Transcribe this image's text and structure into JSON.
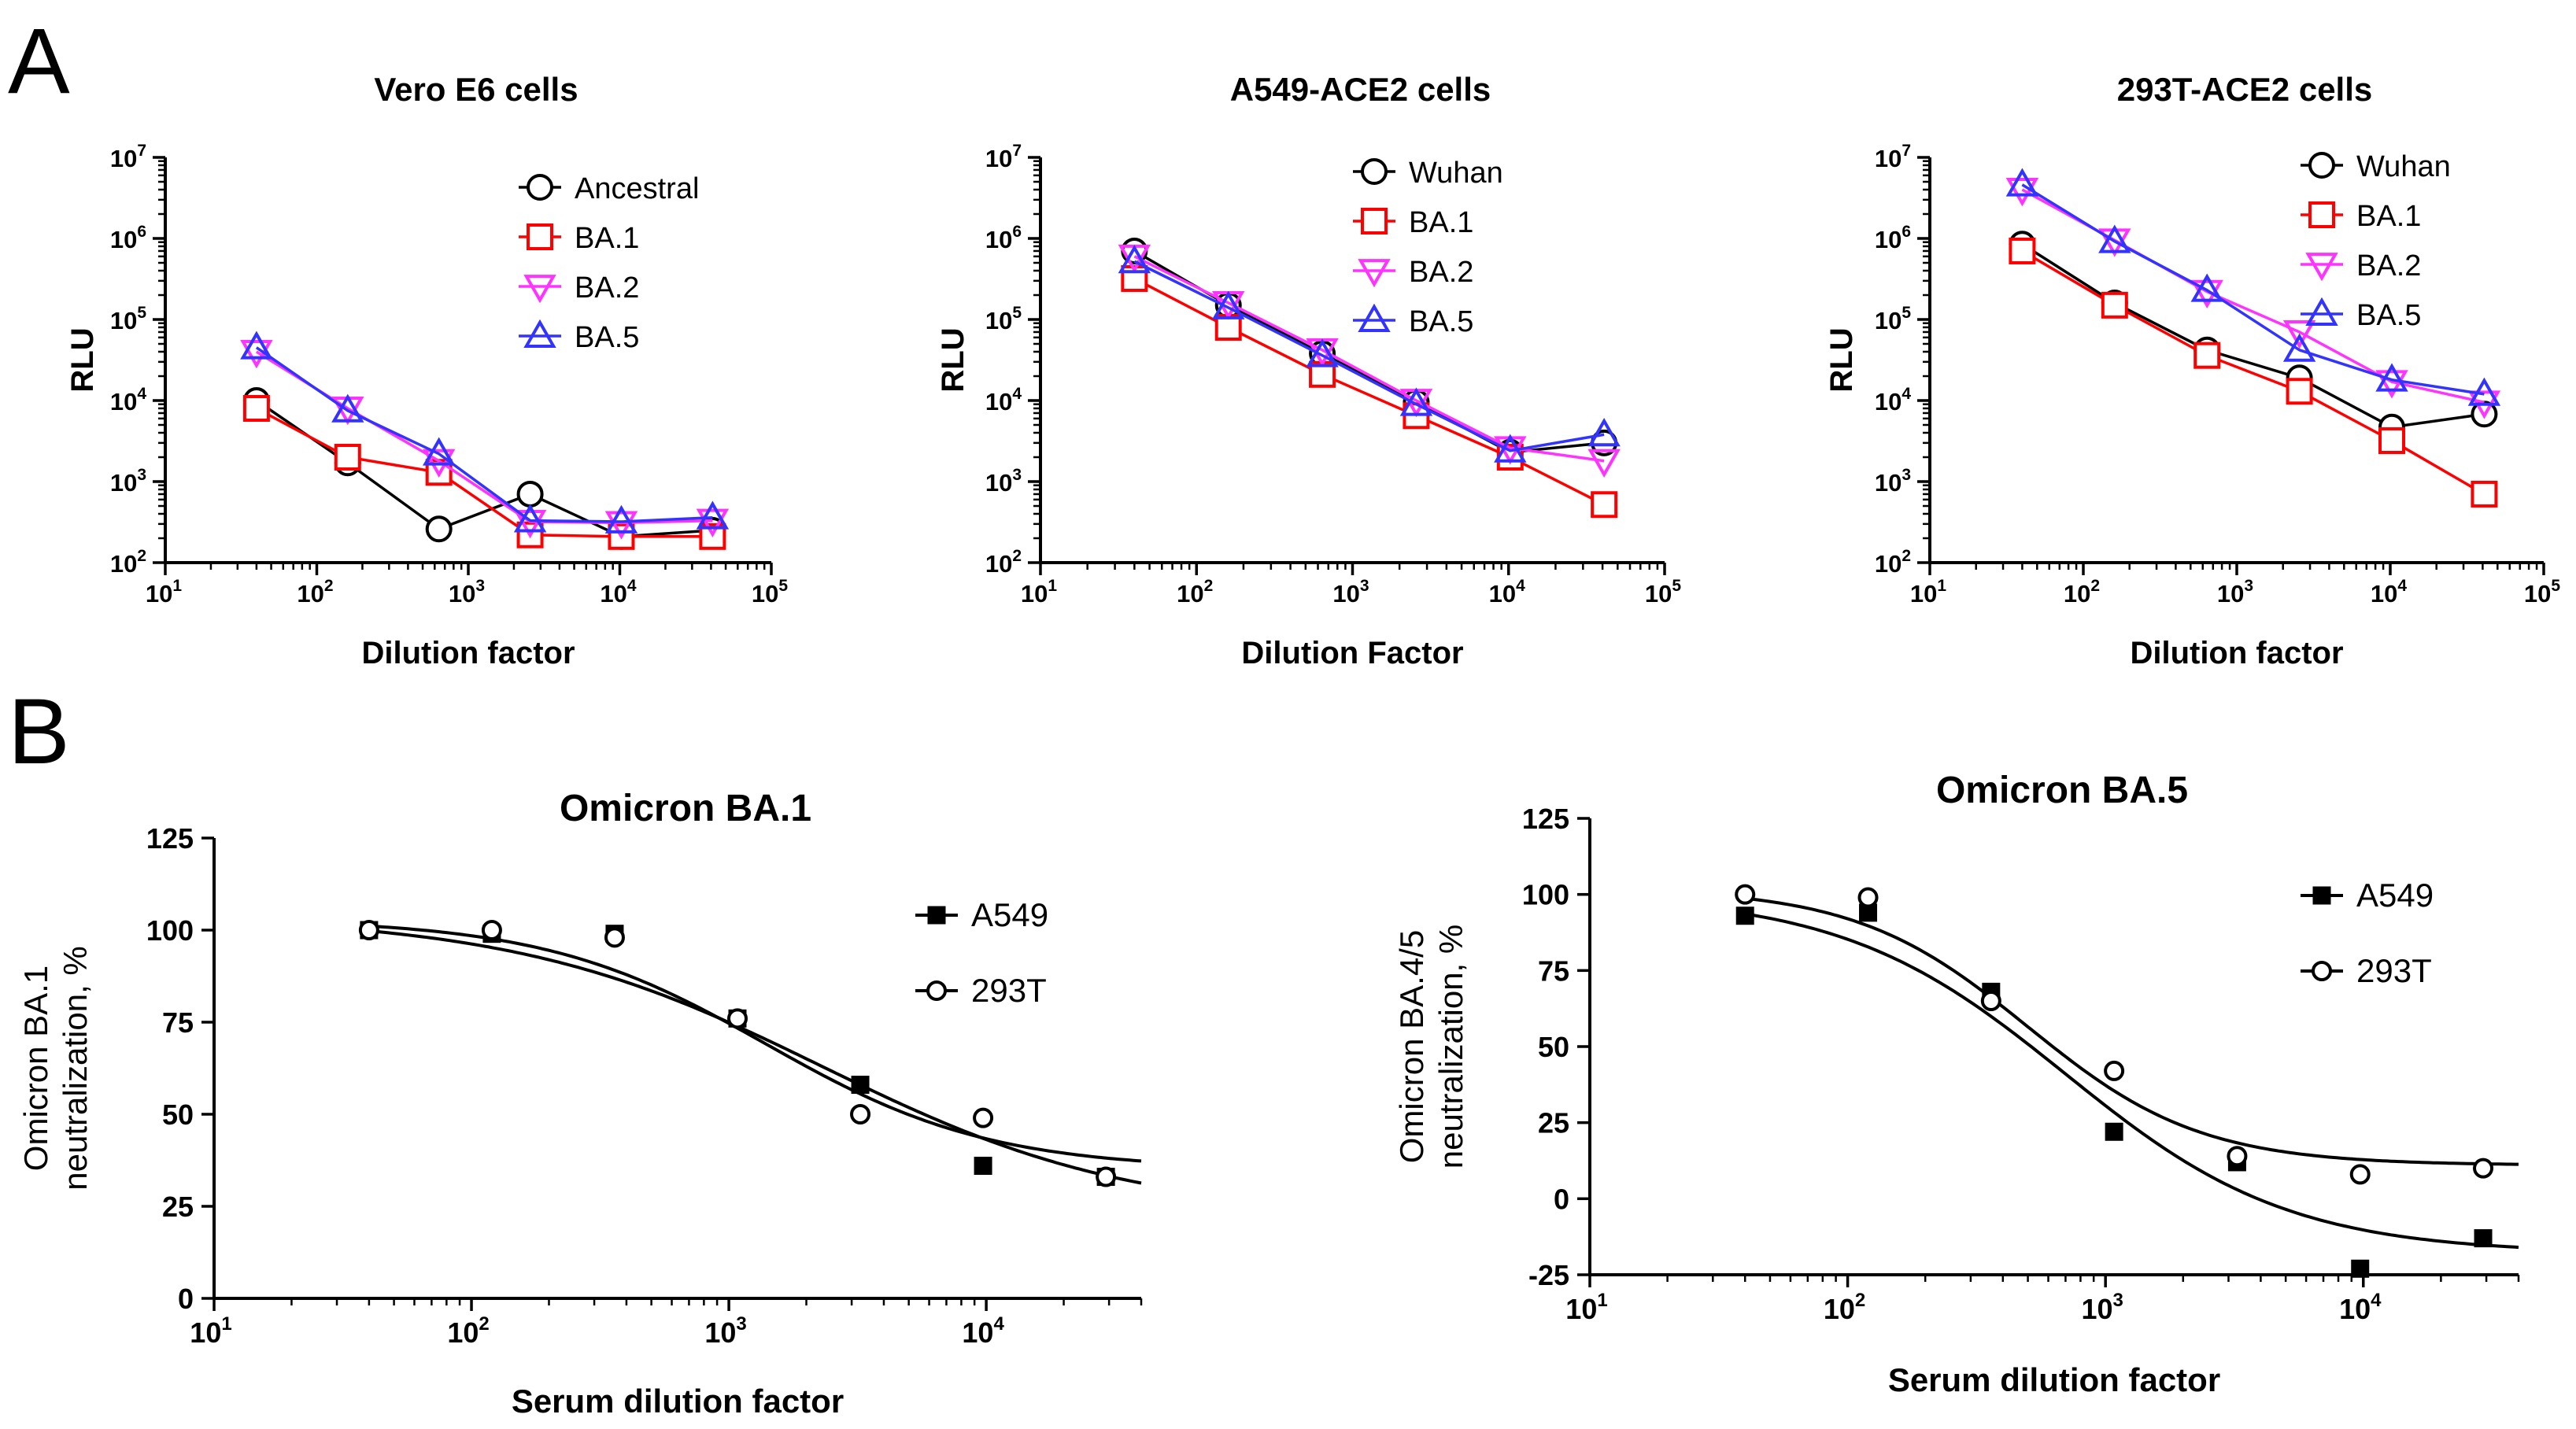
{
  "panel_labels": [
    "A",
    "B"
  ],
  "chart_data": [
    {
      "type": "line",
      "title": "Vero E6 cells",
      "xlabel": "Dilution factor",
      "ylabel": "RLU",
      "xscale": "log",
      "yscale": "log",
      "xlim": [
        10,
        100000
      ],
      "ylim": [
        100,
        10000000
      ],
      "x_ticks": [
        {
          "base": "10",
          "exp": "1"
        },
        {
          "base": "10",
          "exp": "2"
        },
        {
          "base": "10",
          "exp": "3"
        },
        {
          "base": "10",
          "exp": "4"
        },
        {
          "base": "10",
          "exp": "5"
        }
      ],
      "y_ticks": [
        {
          "base": "10",
          "exp": "2"
        },
        {
          "base": "10",
          "exp": "3"
        },
        {
          "base": "10",
          "exp": "4"
        },
        {
          "base": "10",
          "exp": "5"
        },
        {
          "base": "10",
          "exp": "6"
        },
        {
          "base": "10",
          "exp": "7"
        }
      ],
      "x": [
        40,
        160,
        640,
        2560,
        10240,
        40960
      ],
      "legend_position": "top-right",
      "series": [
        {
          "name": "Ancestral",
          "marker": "circle",
          "color": "#000000",
          "values": [
            10000,
            1700,
            260,
            700,
            210,
            250
          ]
        },
        {
          "name": "BA.1",
          "marker": "square",
          "color": "#ff0000",
          "values": [
            8000,
            2000,
            1300,
            220,
            210,
            210
          ]
        },
        {
          "name": "BA.2",
          "marker": "triangle-down",
          "color": "#ff33ff",
          "values": [
            40000,
            8000,
            1800,
            320,
            310,
            330
          ]
        },
        {
          "name": "BA.5",
          "marker": "triangle-up",
          "color": "#3333ff",
          "values": [
            45000,
            7500,
            2200,
            330,
            320,
            360
          ]
        }
      ]
    },
    {
      "type": "line",
      "title": "A549-ACE2 cells",
      "xlabel": "Dilution Factor",
      "ylabel": "RLU",
      "xscale": "log",
      "yscale": "log",
      "xlim": [
        10,
        100000
      ],
      "ylim": [
        100,
        10000000
      ],
      "x_ticks": [
        {
          "base": "10",
          "exp": "1"
        },
        {
          "base": "10",
          "exp": "2"
        },
        {
          "base": "10",
          "exp": "3"
        },
        {
          "base": "10",
          "exp": "4"
        },
        {
          "base": "10",
          "exp": "5"
        }
      ],
      "y_ticks": [
        {
          "base": "10",
          "exp": "2"
        },
        {
          "base": "10",
          "exp": "3"
        },
        {
          "base": "10",
          "exp": "4"
        },
        {
          "base": "10",
          "exp": "5"
        },
        {
          "base": "10",
          "exp": "6"
        },
        {
          "base": "10",
          "exp": "7"
        }
      ],
      "x": [
        40,
        160,
        640,
        2560,
        10240,
        40960
      ],
      "legend_position": "top-right",
      "series": [
        {
          "name": "Wuhan",
          "marker": "circle",
          "color": "#000000",
          "values": [
            700000,
            150000,
            38000,
            9500,
            2300,
            3000
          ]
        },
        {
          "name": "BA.1",
          "marker": "square",
          "color": "#ff0000",
          "values": [
            320000,
            80000,
            21000,
            6500,
            2000,
            520
          ]
        },
        {
          "name": "BA.2",
          "marker": "triangle-down",
          "color": "#ff33ff",
          "values": [
            600000,
            160000,
            42000,
            10000,
            2600,
            1800
          ]
        },
        {
          "name": "BA.5",
          "marker": "triangle-up",
          "color": "#3333ff",
          "values": [
            520000,
            140000,
            36000,
            9000,
            2400,
            3800
          ]
        }
      ]
    },
    {
      "type": "line",
      "title": "293T-ACE2 cells",
      "xlabel": "Dilution factor",
      "ylabel": "RLU",
      "xscale": "log",
      "yscale": "log",
      "xlim": [
        10,
        100000
      ],
      "ylim": [
        100,
        10000000
      ],
      "x_ticks": [
        {
          "base": "10",
          "exp": "1"
        },
        {
          "base": "10",
          "exp": "2"
        },
        {
          "base": "10",
          "exp": "3"
        },
        {
          "base": "10",
          "exp": "4"
        },
        {
          "base": "10",
          "exp": "5"
        }
      ],
      "y_ticks": [
        {
          "base": "10",
          "exp": "2"
        },
        {
          "base": "10",
          "exp": "3"
        },
        {
          "base": "10",
          "exp": "4"
        },
        {
          "base": "10",
          "exp": "5"
        },
        {
          "base": "10",
          "exp": "6"
        },
        {
          "base": "10",
          "exp": "7"
        }
      ],
      "x": [
        40,
        160,
        640,
        2560,
        10240,
        40960
      ],
      "legend_position": "top-right",
      "series": [
        {
          "name": "Wuhan",
          "marker": "circle",
          "color": "#000000",
          "values": [
            850000,
            160000,
            42000,
            19000,
            4700,
            6800
          ]
        },
        {
          "name": "BA.1",
          "marker": "square",
          "color": "#ff0000",
          "values": [
            700000,
            150000,
            36000,
            13000,
            3200,
            700
          ]
        },
        {
          "name": "BA.2",
          "marker": "triangle-down",
          "color": "#ff33ff",
          "values": [
            4000000,
            950000,
            220000,
            70000,
            17000,
            9500
          ]
        },
        {
          "name": "BA.5",
          "marker": "triangle-up",
          "color": "#3333ff",
          "values": [
            4600000,
            920000,
            230000,
            42000,
            18000,
            12000
          ]
        }
      ]
    },
    {
      "type": "scatter",
      "title": "Omicron BA.1",
      "xlabel": "Serum dilution factor",
      "ylabel_lines": [
        "Omicron BA.1",
        "neutralization,  %"
      ],
      "xscale": "log",
      "xlim": [
        10,
        40000
      ],
      "ylim": [
        0,
        125
      ],
      "x_ticks": [
        {
          "base": "10",
          "exp": "1"
        },
        {
          "base": "10",
          "exp": "2"
        },
        {
          "base": "10",
          "exp": "3"
        },
        {
          "base": "10",
          "exp": "4"
        }
      ],
      "y_ticks": [
        "0",
        "25",
        "50",
        "75",
        "100",
        "125"
      ],
      "y_tick_values": [
        0,
        25,
        50,
        75,
        100,
        125
      ],
      "x": [
        40,
        120,
        360,
        1080,
        3240,
        9720,
        29160
      ],
      "legend_position": "top-right",
      "series": [
        {
          "name": "A549",
          "marker": "filled-square",
          "color": "#000000",
          "values": [
            100,
            99,
            99,
            76,
            58,
            36,
            33
          ],
          "fit": {
            "bottom": 22,
            "top": 104,
            "ec50": 2300,
            "hill": 0.72
          }
        },
        {
          "name": "293T",
          "marker": "open-circle",
          "color": "#000000",
          "values": [
            100,
            100,
            98,
            76,
            50,
            49,
            33
          ],
          "fit": {
            "bottom": 35,
            "top": 103,
            "ec50": 1400,
            "hill": 1.0
          }
        }
      ]
    },
    {
      "type": "scatter",
      "title": "Omicron BA.5",
      "xlabel": "Serum dilution factor",
      "ylabel_lines": [
        "Omicron BA.4/5",
        "neutralization,  %"
      ],
      "xscale": "log",
      "xlim": [
        10,
        40000
      ],
      "ylim": [
        -25,
        125
      ],
      "x_ticks": [
        {
          "base": "10",
          "exp": "1"
        },
        {
          "base": "10",
          "exp": "2"
        },
        {
          "base": "10",
          "exp": "3"
        },
        {
          "base": "10",
          "exp": "4"
        }
      ],
      "y_ticks": [
        "-25",
        "0",
        "25",
        "50",
        "75",
        "100",
        "125"
      ],
      "y_tick_values": [
        -25,
        0,
        25,
        50,
        75,
        100,
        125
      ],
      "x": [
        40,
        120,
        360,
        1080,
        3240,
        9720,
        29160
      ],
      "legend_position": "top-right",
      "series": [
        {
          "name": "A549",
          "marker": "filled-square",
          "color": "#000000",
          "values": [
            93,
            94,
            68,
            22,
            12,
            -23,
            -13
          ],
          "fit": {
            "bottom": -18,
            "top": 100,
            "ec50": 700,
            "hill": 1.0
          }
        },
        {
          "name": "293T",
          "marker": "open-circle",
          "color": "#000000",
          "values": [
            100,
            99,
            65,
            42,
            14,
            8,
            10
          ],
          "fit": {
            "bottom": 11,
            "top": 102,
            "ec50": 500,
            "hill": 1.3
          }
        }
      ]
    }
  ]
}
